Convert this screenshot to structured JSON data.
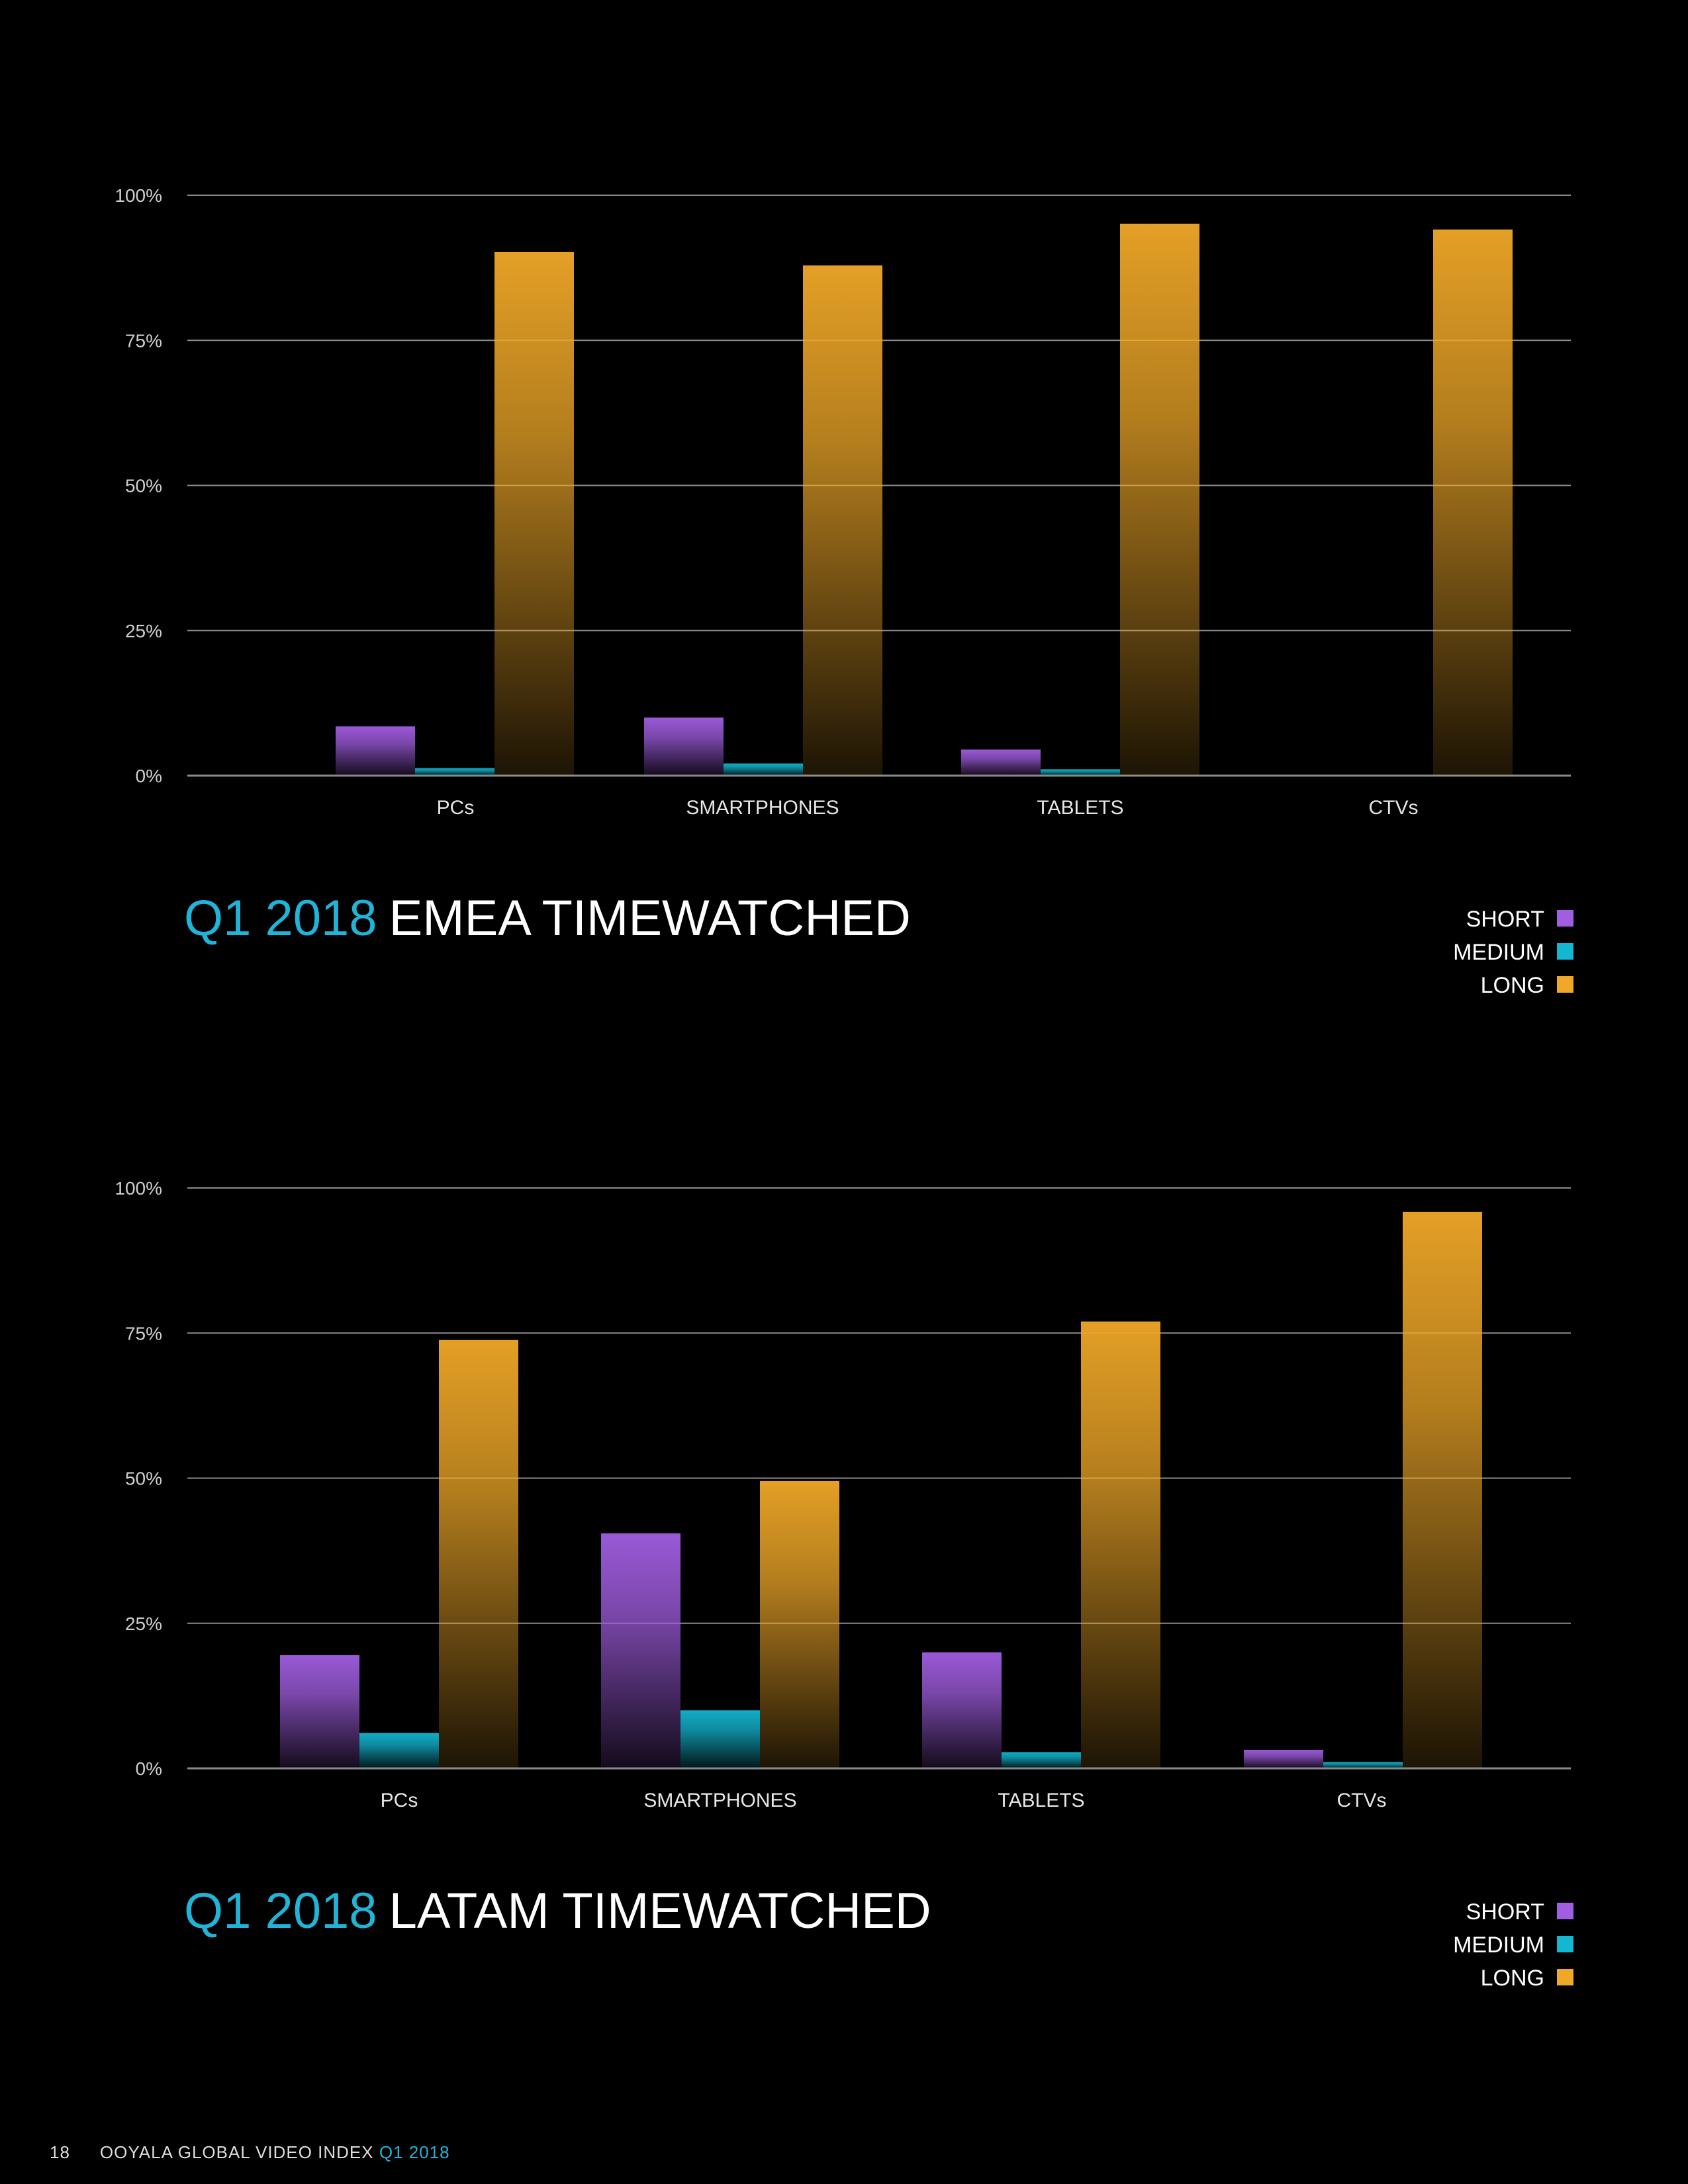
{
  "colors": {
    "short": "#a25ee2",
    "medium": "#13b7d2",
    "long": "#f0a828",
    "accent": "#1fb4d8",
    "grid": "#8a8a8a"
  },
  "chart_data": [
    {
      "type": "bar",
      "title_prefix": "Q1 2018",
      "title": "EMEA TIMEWATCHED",
      "categories": [
        "PCs",
        "SMARTPHONES",
        "TABLETS",
        "CTVs"
      ],
      "series": [
        {
          "name": "SHORT",
          "values": [
            8.5,
            10,
            4.5,
            0
          ]
        },
        {
          "name": "MEDIUM",
          "values": [
            1.3,
            2.1,
            1.1,
            0
          ]
        },
        {
          "name": "LONG",
          "values": [
            90.2,
            87.9,
            95.1,
            94.1
          ]
        }
      ],
      "yticks": [
        "0%",
        "25%",
        "50%",
        "75%",
        "100%"
      ],
      "ylim": [
        0,
        100
      ],
      "legend_position": "bottom-right"
    },
    {
      "type": "bar",
      "title_prefix": "Q1 2018",
      "title": "LATAM TIMEWATCHED",
      "categories": [
        "PCs",
        "SMARTPHONES",
        "TABLETS",
        "CTVs"
      ],
      "series": [
        {
          "name": "SHORT",
          "values": [
            19.5,
            40.5,
            20,
            3.2
          ]
        },
        {
          "name": "MEDIUM",
          "values": [
            6.1,
            10,
            2.8,
            1.1
          ]
        },
        {
          "name": "LONG",
          "values": [
            73.8,
            49.5,
            77,
            95.9
          ]
        }
      ],
      "yticks": [
        "0%",
        "25%",
        "50%",
        "75%",
        "100%"
      ],
      "ylim": [
        0,
        100
      ],
      "legend_position": "bottom-right"
    }
  ],
  "footer": {
    "page_number": "18",
    "title": "OOYALA GLOBAL VIDEO INDEX",
    "period": "Q1 2018"
  }
}
